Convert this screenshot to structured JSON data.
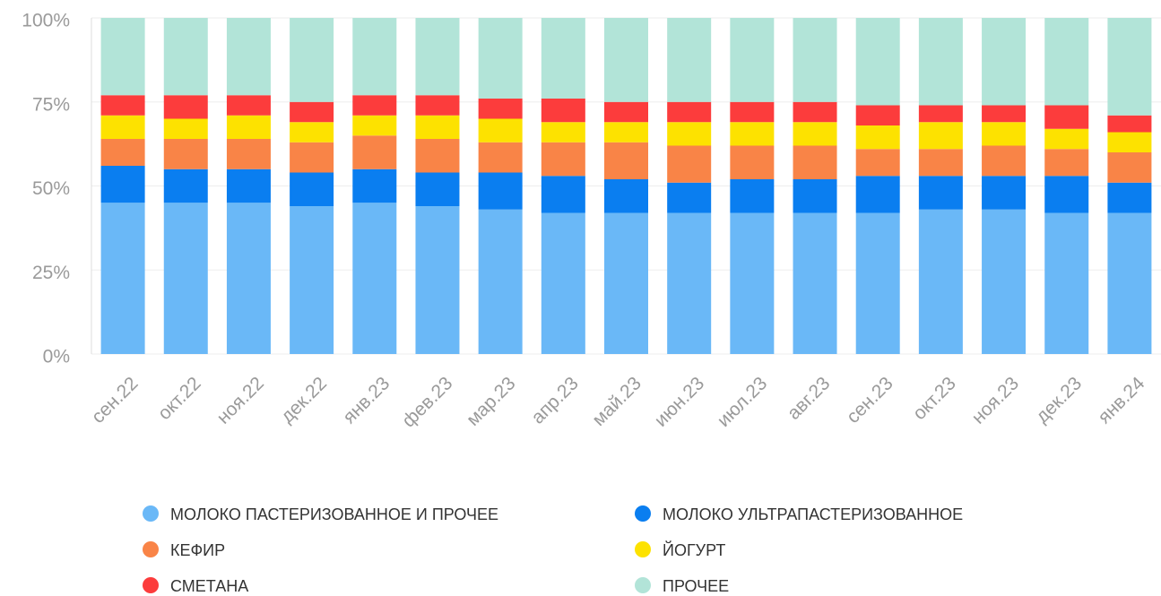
{
  "chart_data": {
    "type": "stacked_bar",
    "categories": [
      "сен.22",
      "окт.22",
      "ноя.22",
      "дек.22",
      "янв.23",
      "фев.23",
      "мар.23",
      "апр.23",
      "май.23",
      "июн.23",
      "июл.23",
      "авг.23",
      "сен.23",
      "окт.23",
      "ноя.23",
      "дек.23",
      "янв.24"
    ],
    "series": [
      {
        "name": "МОЛОКО ПАСТЕРИЗОВАННОЕ И ПРОЧЕЕ",
        "color": "#6ab8f7",
        "values": [
          45,
          45,
          45,
          44,
          45,
          44,
          43,
          42,
          42,
          42,
          42,
          42,
          42,
          43,
          43,
          42,
          42
        ]
      },
      {
        "name": "МОЛОКО УЛЬТРАПАСТЕРИЗОВАННОЕ",
        "color": "#0a7ef0",
        "values": [
          11,
          10,
          10,
          10,
          10,
          10,
          11,
          11,
          10,
          9,
          10,
          10,
          11,
          10,
          10,
          11,
          9
        ]
      },
      {
        "name": "КЕФИР",
        "color": "#f98447",
        "values": [
          8,
          9,
          9,
          9,
          10,
          10,
          9,
          10,
          11,
          11,
          10,
          10,
          8,
          8,
          9,
          8,
          9
        ]
      },
      {
        "name": "ЙОГУРТ",
        "color": "#fde200",
        "values": [
          7,
          6,
          7,
          6,
          6,
          7,
          7,
          6,
          6,
          7,
          7,
          7,
          7,
          8,
          7,
          6,
          6
        ]
      },
      {
        "name": "СМЕТАНА",
        "color": "#fc3c3c",
        "values": [
          6,
          7,
          6,
          6,
          6,
          6,
          6,
          7,
          6,
          6,
          6,
          6,
          6,
          5,
          5,
          7,
          5
        ]
      },
      {
        "name": "ПРОЧЕЕ",
        "color": "#b2e4d8",
        "values": [
          23,
          23,
          23,
          25,
          23,
          23,
          24,
          24,
          25,
          25,
          25,
          25,
          26,
          26,
          26,
          26,
          29
        ]
      }
    ],
    "ylim": [
      0,
      100
    ],
    "yticks": [
      {
        "value": 0,
        "label": "0%"
      },
      {
        "value": 25,
        "label": "25%"
      },
      {
        "value": 50,
        "label": "50%"
      },
      {
        "value": 75,
        "label": "75%"
      },
      {
        "value": 100,
        "label": "100%"
      }
    ],
    "grid": true
  }
}
